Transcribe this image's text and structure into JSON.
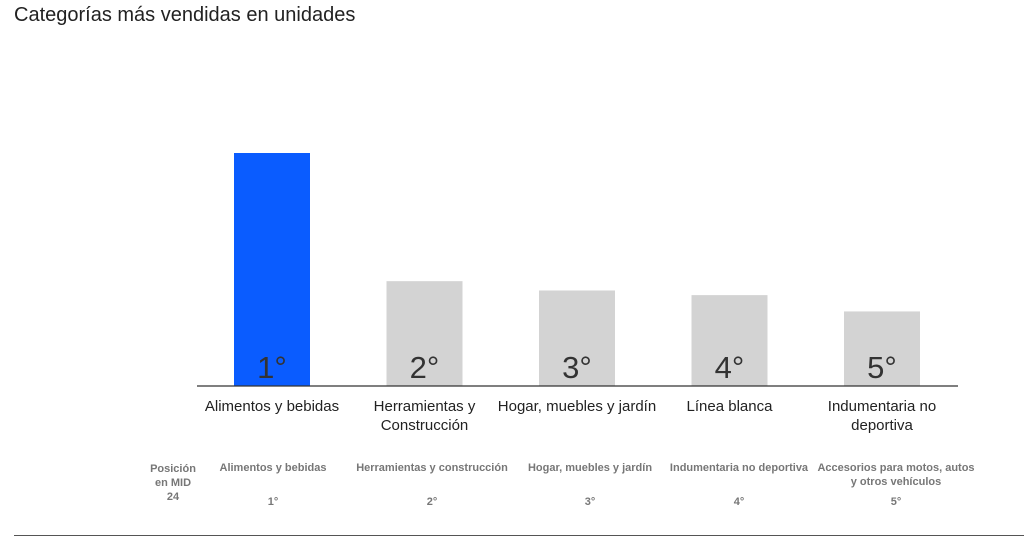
{
  "title": "Categorías más vendidas en unidades",
  "colors": {
    "highlight": "#0a5cff",
    "bar": "#d3d3d3",
    "axis": "#333333",
    "muted": "#777777"
  },
  "chart_data": {
    "type": "bar",
    "title": "Categorías más vendidas en unidades",
    "xlabel": "",
    "ylabel": "",
    "ylim": [
      0,
      100
    ],
    "grid": false,
    "categories": [
      "Alimentos y bebidas",
      "Herramientas y Construcción",
      "Hogar, muebles y jardín",
      "Línea blanca",
      "Indumentaria no deportiva"
    ],
    "values": [
      100,
      45,
      41,
      39,
      32
    ],
    "data_labels": [
      "1°",
      "2°",
      "3°",
      "4°",
      "5°"
    ],
    "highlight_index": 0
  },
  "mid_table": {
    "row_label": "Posición en MID 24",
    "items": [
      {
        "name": "Alimentos y bebidas",
        "rank": "1°"
      },
      {
        "name": "Herramientas y construcción",
        "rank": "2°"
      },
      {
        "name": "Hogar, muebles y jardín",
        "rank": "3°"
      },
      {
        "name": "Indumentaria no deportiva",
        "rank": "4°"
      },
      {
        "name": "Accesorios para motos, autos y otros vehículos",
        "rank": "5°"
      }
    ]
  }
}
